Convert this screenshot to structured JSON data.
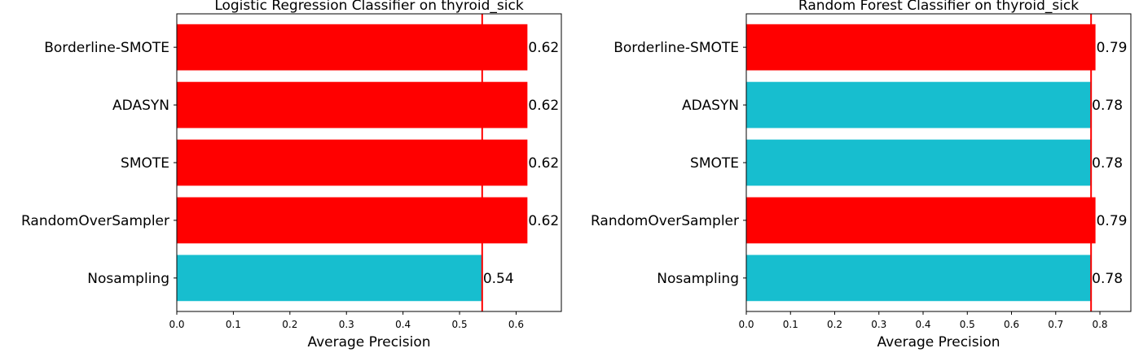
{
  "colors": {
    "above_baseline": "#ff0000",
    "at_or_below_baseline": "#17becf",
    "baseline_line": "#ff0000"
  },
  "chart_data": [
    {
      "type": "bar",
      "orientation": "horizontal",
      "title": "Logistic Regression Classifier on thyroid_sick",
      "xlabel": "Average Precision",
      "ylabel": "",
      "categories": [
        "Nosampling",
        "RandomOverSampler",
        "SMOTE",
        "ADASYN",
        "Borderline-SMOTE"
      ],
      "values": [
        0.54,
        0.62,
        0.62,
        0.62,
        0.62
      ],
      "value_labels": [
        "0.54",
        "0.62",
        "0.62",
        "0.62",
        "0.62"
      ],
      "bar_colors": [
        "#17becf",
        "#ff0000",
        "#ff0000",
        "#ff0000",
        "#ff0000"
      ],
      "baseline": 0.54,
      "xlim": [
        0,
        0.68
      ],
      "xticks": [
        0.0,
        0.1,
        0.2,
        0.3,
        0.4,
        0.5,
        0.6
      ],
      "xtick_labels": [
        "0.0",
        "0.1",
        "0.2",
        "0.3",
        "0.4",
        "0.5",
        "0.6"
      ],
      "grid": false
    },
    {
      "type": "bar",
      "orientation": "horizontal",
      "title": "Random Forest Classifier on thyroid_sick",
      "xlabel": "Average Precision",
      "ylabel": "",
      "categories": [
        "Nosampling",
        "RandomOverSampler",
        "SMOTE",
        "ADASYN",
        "Borderline-SMOTE"
      ],
      "values": [
        0.78,
        0.79,
        0.78,
        0.78,
        0.79
      ],
      "value_labels": [
        "0.78",
        "0.79",
        "0.78",
        "0.78",
        "0.79"
      ],
      "bar_colors": [
        "#17becf",
        "#ff0000",
        "#17becf",
        "#17becf",
        "#ff0000"
      ],
      "baseline": 0.78,
      "xlim": [
        0,
        0.87
      ],
      "xticks": [
        0.0,
        0.1,
        0.2,
        0.3,
        0.4,
        0.5,
        0.6,
        0.7,
        0.8
      ],
      "xtick_labels": [
        "0.0",
        "0.1",
        "0.2",
        "0.3",
        "0.4",
        "0.5",
        "0.6",
        "0.7",
        "0.8"
      ],
      "grid": false
    }
  ]
}
